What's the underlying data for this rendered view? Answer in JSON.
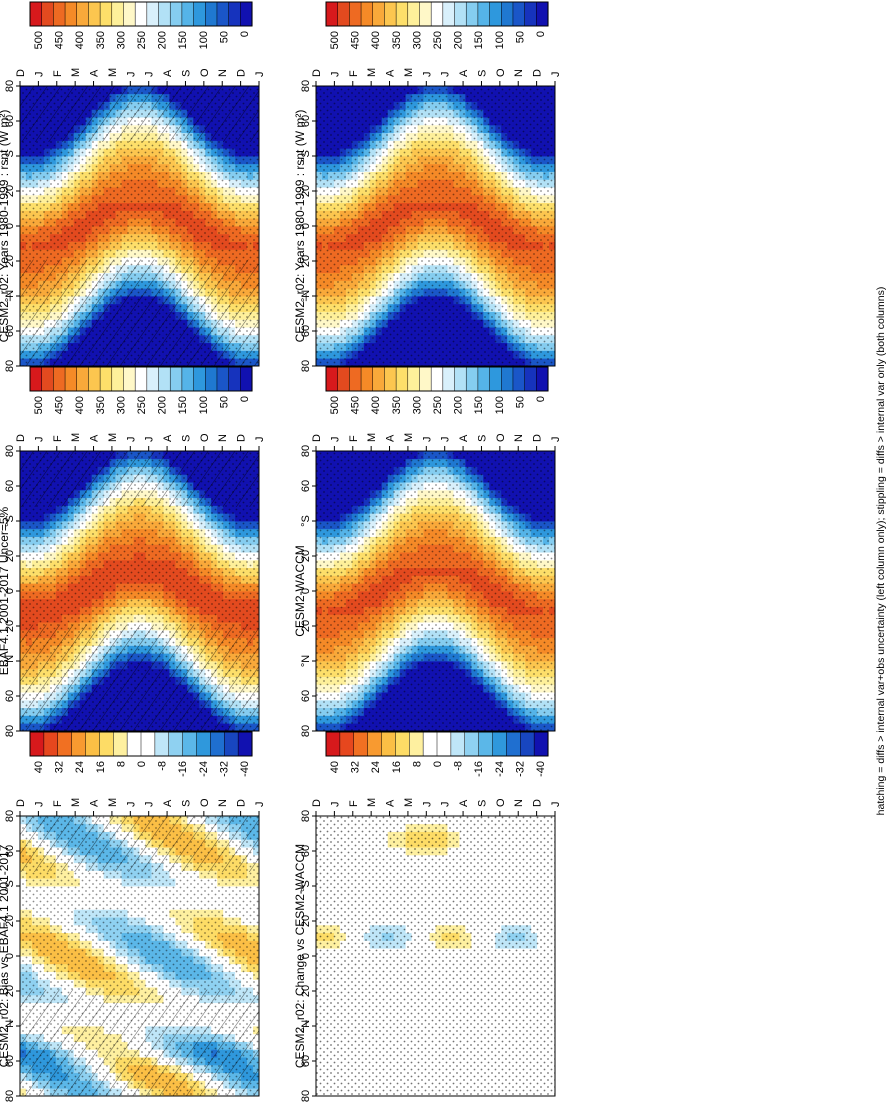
{
  "footer_note": "hatching = diffs > internal var+obs uncertainty (left column only); stippling = diffs > internal var only (both columns)",
  "palettes": {
    "abs": [
      "#d7191c",
      "#e34a1f",
      "#ee6a22",
      "#f58a27",
      "#f9a93a",
      "#fcc64f",
      "#fddf6a",
      "#fef09a",
      "#fff8c8",
      "#ffffff",
      "#d9f0fb",
      "#b2e1f6",
      "#85cdf0",
      "#55b4e8",
      "#2e98dd",
      "#1f78d1",
      "#1a56c8",
      "#1633bd",
      "#1111b0"
    ],
    "diff": [
      "#d7191c",
      "#e6471e",
      "#f17022",
      "#f89a30",
      "#fbbf45",
      "#fddc66",
      "#fef0a0",
      "#ffffff",
      "#ffffff",
      "#bfe6f8",
      "#8fd1f1",
      "#5bb7e8",
      "#2f98dc",
      "#1f6fd0",
      "#1846c0",
      "#1111b0"
    ]
  },
  "chart_data": [
    {
      "id": "p1",
      "type": "heatmap",
      "column": "left",
      "title": "CESM2_r02: Years 1980-1999 : rsnt (W m²)",
      "x_ticks": [
        "D",
        "J",
        "F",
        "M",
        "A",
        "M",
        "J",
        "J",
        "A",
        "S",
        "O",
        "N",
        "D",
        "J"
      ],
      "y_ticks": [
        "80",
        "60",
        "°N",
        "20",
        "0",
        "20",
        "°S",
        "60",
        "80"
      ],
      "kind": "abs",
      "hatch": true,
      "stipple": true,
      "colorbar": {
        "labels": [
          "500",
          "450",
          "400",
          "350",
          "300",
          "250",
          "200",
          "150",
          "100",
          "50",
          "0"
        ],
        "range": [
          0,
          525
        ],
        "step": 25
      }
    },
    {
      "id": "p2",
      "type": "heatmap",
      "column": "right",
      "title": "CESM2_r02: Years 1980-1999 : rsnt (W m²)",
      "x_ticks": [
        "D",
        "J",
        "F",
        "M",
        "A",
        "M",
        "J",
        "J",
        "A",
        "S",
        "O",
        "N",
        "D",
        "J"
      ],
      "y_ticks": [
        "80",
        "60",
        "°N",
        "20",
        "0",
        "20",
        "°S",
        "60",
        "80"
      ],
      "kind": "abs",
      "hatch": false,
      "stipple": true,
      "colorbar": {
        "labels": [
          "500",
          "450",
          "400",
          "350",
          "300",
          "250",
          "200",
          "150",
          "100",
          "50",
          "0"
        ],
        "range": [
          0,
          525
        ],
        "step": 25
      }
    },
    {
      "id": "p3",
      "type": "heatmap",
      "column": "left",
      "title": "EBAF4.1 2001-2017 Uncer=5%",
      "x_ticks": [
        "D",
        "J",
        "F",
        "M",
        "A",
        "M",
        "J",
        "J",
        "A",
        "S",
        "O",
        "N",
        "D",
        "J"
      ],
      "y_ticks": [
        "80",
        "60",
        "°N",
        "20",
        "0",
        "20",
        "°S",
        "60",
        "80"
      ],
      "kind": "abs",
      "hatch": true,
      "stipple": true,
      "colorbar": {
        "labels": [
          "500",
          "450",
          "400",
          "350",
          "300",
          "250",
          "200",
          "150",
          "100",
          "50",
          "0"
        ],
        "range": [
          0,
          525
        ],
        "step": 25
      }
    },
    {
      "id": "p4",
      "type": "heatmap",
      "column": "right",
      "title": "CESM2-WACCM",
      "x_ticks": [
        "D",
        "J",
        "F",
        "M",
        "A",
        "M",
        "J",
        "J",
        "A",
        "S",
        "O",
        "N",
        "D",
        "J"
      ],
      "y_ticks": [
        "80",
        "60",
        "°N",
        "20",
        "0",
        "20",
        "°S",
        "60",
        "80"
      ],
      "kind": "abs",
      "hatch": false,
      "stipple": true,
      "colorbar": {
        "labels": [
          "500",
          "450",
          "400",
          "350",
          "300",
          "250",
          "200",
          "150",
          "100",
          "50",
          "0"
        ],
        "range": [
          0,
          525
        ],
        "step": 25
      }
    },
    {
      "id": "p5",
      "type": "heatmap",
      "column": "left",
      "title": "CESM2_r02: Bias vs EBAF4.1 2001-2017",
      "x_ticks": [
        "D",
        "J",
        "F",
        "M",
        "A",
        "M",
        "J",
        "J",
        "A",
        "S",
        "O",
        "N",
        "D",
        "J"
      ],
      "y_ticks": [
        "80",
        "60",
        "°N",
        "20",
        "0",
        "20",
        "°S",
        "60",
        "80"
      ],
      "kind": "bias",
      "hatch": true,
      "stipple": true,
      "colorbar": {
        "labels": [
          "40",
          "32",
          "24",
          "16",
          "8",
          "0",
          "-8",
          "-16",
          "-24",
          "-32",
          "-40"
        ],
        "range": [
          -40,
          40
        ],
        "step": 5
      }
    },
    {
      "id": "p6",
      "type": "heatmap",
      "column": "right",
      "title": "CESM2_r02: Change vs CESM2-WACCM",
      "x_ticks": [
        "D",
        "J",
        "F",
        "M",
        "A",
        "M",
        "J",
        "J",
        "A",
        "S",
        "O",
        "N",
        "D",
        "J"
      ],
      "y_ticks": [
        "80",
        "60",
        "°N",
        "20",
        "0",
        "20",
        "°S",
        "60",
        "80"
      ],
      "kind": "change",
      "hatch": false,
      "stipple": true,
      "colorbar": {
        "labels": [
          "40",
          "32",
          "24",
          "16",
          "8",
          "0",
          "-8",
          "-16",
          "-24",
          "-32",
          "-40"
        ],
        "range": [
          -40,
          40
        ],
        "step": 5
      }
    }
  ]
}
